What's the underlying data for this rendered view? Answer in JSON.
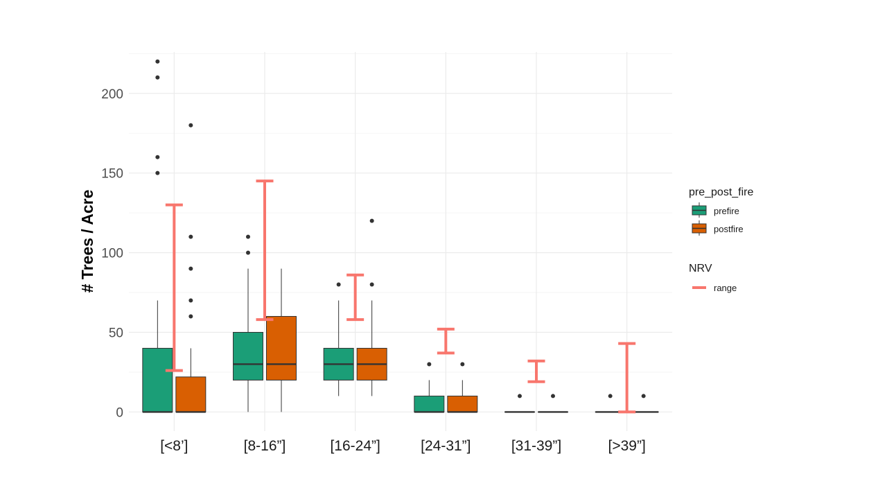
{
  "chart_data": {
    "type": "boxplot",
    "ylabel": "# Trees / Acre",
    "xlabel": "",
    "ylim": [
      -12,
      226
    ],
    "yticks": [
      0,
      50,
      100,
      150,
      200
    ],
    "categories": [
      "[<8’]",
      "[8-16”]",
      "[16-24”]",
      "[24-31”]",
      "[31-39”]",
      "[>39”]"
    ],
    "grid": true,
    "legend_position": "right",
    "fill_legend": {
      "title": "pre_post_fire",
      "entries": [
        {
          "name": "prefire",
          "color": "#1b9e77"
        },
        {
          "name": "postfire",
          "color": "#d95f02"
        }
      ]
    },
    "nrv_legend": {
      "title": "NRV",
      "entries": [
        {
          "name": "range",
          "color": "#f8766d"
        }
      ]
    },
    "series": [
      {
        "name": "prefire",
        "color": "#1b9e77",
        "boxes": [
          {
            "min": 0,
            "q1": 0,
            "median": 0,
            "q3": 40,
            "max": 70,
            "outliers": [
              150,
              160,
              210,
              220
            ]
          },
          {
            "min": 0,
            "q1": 20,
            "median": 30,
            "q3": 50,
            "max": 90,
            "outliers": [
              100,
              110
            ]
          },
          {
            "min": 10,
            "q1": 20,
            "median": 30,
            "q3": 40,
            "max": 70,
            "outliers": [
              80
            ]
          },
          {
            "min": 0,
            "q1": 0,
            "median": 0,
            "q3": 10,
            "max": 20,
            "outliers": [
              30
            ]
          },
          {
            "min": 0,
            "q1": 0,
            "median": 0,
            "q3": 0,
            "max": 0,
            "outliers": [
              10
            ]
          },
          {
            "min": 0,
            "q1": 0,
            "median": 0,
            "q3": 0,
            "max": 0,
            "outliers": [
              10
            ]
          }
        ]
      },
      {
        "name": "postfire",
        "color": "#d95f02",
        "boxes": [
          {
            "min": 0,
            "q1": 0,
            "median": 0,
            "q3": 22,
            "max": 40,
            "outliers": [
              60,
              70,
              90,
              110,
              180
            ]
          },
          {
            "min": 0,
            "q1": 20,
            "median": 30,
            "q3": 60,
            "max": 90,
            "outliers": []
          },
          {
            "min": 10,
            "q1": 20,
            "median": 30,
            "q3": 40,
            "max": 70,
            "outliers": [
              80,
              120
            ]
          },
          {
            "min": 0,
            "q1": 0,
            "median": 0,
            "q3": 10,
            "max": 20,
            "outliers": [
              30
            ]
          },
          {
            "min": 0,
            "q1": 0,
            "median": 0,
            "q3": 0,
            "max": 0,
            "outliers": [
              10
            ]
          },
          {
            "min": 0,
            "q1": 0,
            "median": 0,
            "q3": 0,
            "max": 0,
            "outliers": [
              10
            ]
          }
        ]
      }
    ],
    "nrv_ranges": [
      {
        "low": 26,
        "high": 130
      },
      {
        "low": 58,
        "high": 145
      },
      {
        "low": 58,
        "high": 86
      },
      {
        "low": 37,
        "high": 52
      },
      {
        "low": 19,
        "high": 32
      },
      {
        "low": 0,
        "high": 43
      }
    ]
  }
}
